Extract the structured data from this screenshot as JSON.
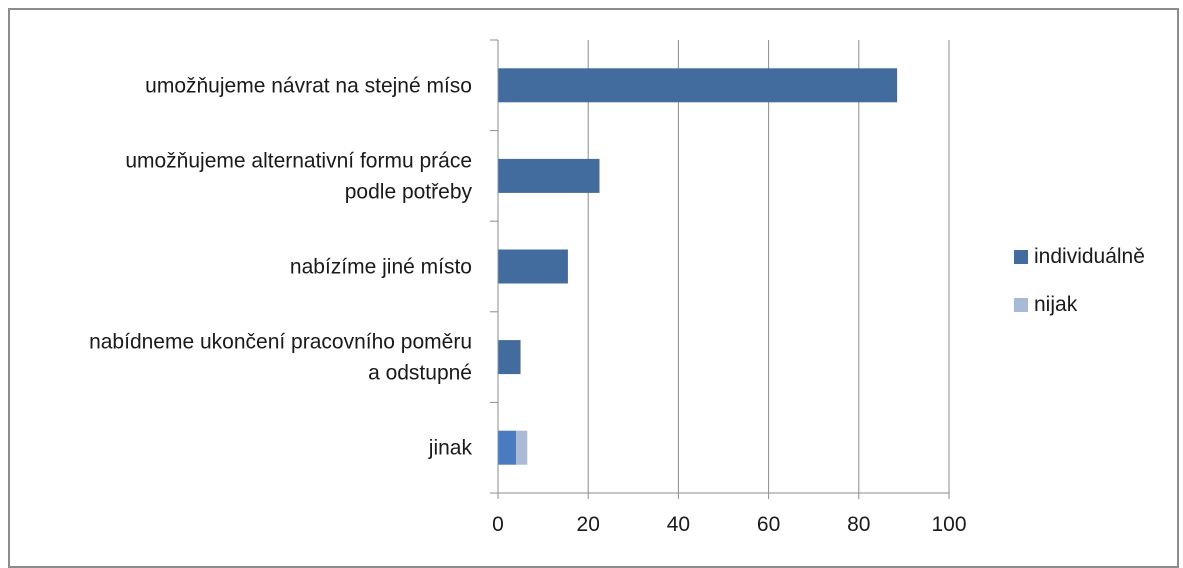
{
  "chart_data": {
    "type": "bar",
    "orientation": "horizontal",
    "stacked": true,
    "categories": [
      [
        "umožňujeme návrat na stejné míso"
      ],
      [
        "umožňujeme alternativní formu práce",
        "podle potřeby"
      ],
      [
        "nabízíme jiné místo"
      ],
      [
        "nabídneme ukončení pracovního poměru",
        "a odstupné"
      ],
      [
        "jinak"
      ]
    ],
    "series": [
      {
        "name": "individuálně",
        "color": "#426b9e",
        "values": [
          88.5,
          22.5,
          15.5,
          5,
          4
        ]
      },
      {
        "name": "nijak",
        "color": "#a9bad6",
        "values": [
          0,
          0,
          0,
          0,
          2.5
        ]
      }
    ],
    "xlim": [
      0,
      100
    ],
    "xticks": [
      "0",
      "20",
      "40",
      "60",
      "80",
      "100"
    ],
    "grid": "vertical",
    "legend_position": "right"
  }
}
